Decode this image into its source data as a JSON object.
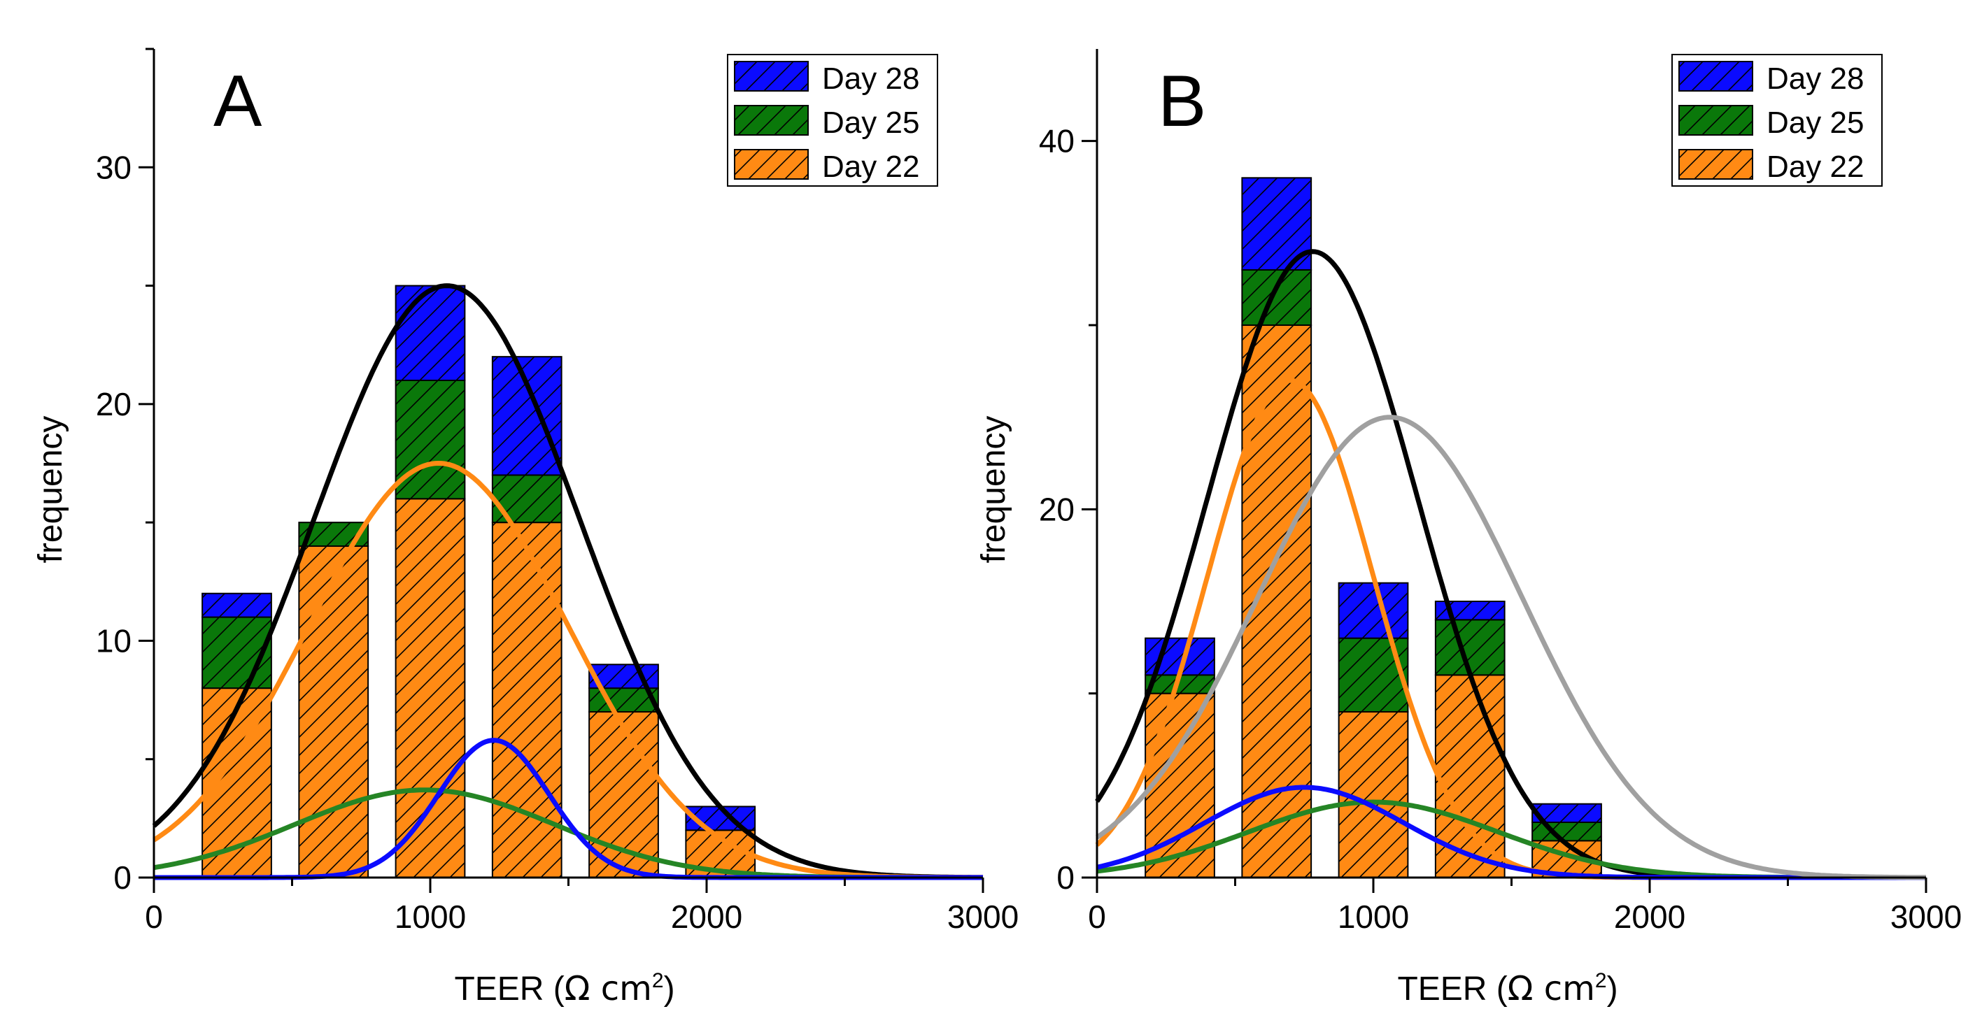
{
  "chart_data": [
    {
      "type": "bar",
      "panel_label": "A",
      "stacked": true,
      "bin_centers": [
        300,
        650,
        1000,
        1350,
        1700,
        2050
      ],
      "bin_width": 250,
      "series": [
        {
          "name": "Day 22",
          "color": "#ff8a14",
          "values": [
            8,
            14,
            16,
            15,
            7,
            2
          ]
        },
        {
          "name": "Day 25",
          "color": "#0a780a",
          "values": [
            3,
            1,
            5,
            2,
            1,
            0
          ]
        },
        {
          "name": "Day 28",
          "color": "#0b0bff",
          "values": [
            1,
            0,
            4,
            5,
            1,
            1
          ]
        }
      ],
      "fit_curves": [
        {
          "name": "total-fit",
          "color": "#000000",
          "mean": 1060,
          "sigma": 480,
          "amplitude": 25
        },
        {
          "name": "day22-fit",
          "color": "#ff8a14",
          "mean": 1030,
          "sigma": 470,
          "amplitude": 17.5
        },
        {
          "name": "day25-fit",
          "color": "#258525",
          "mean": 980,
          "sigma": 470,
          "amplitude": 3.7
        },
        {
          "name": "day28-fit",
          "color": "#0b0bff",
          "mean": 1230,
          "sigma": 200,
          "amplitude": 5.8
        }
      ],
      "xlabel": "TEER (Ω cm²)",
      "xlabel_main": "TEER (",
      "xlabel_unit": "Ω cm",
      "xlabel_sup": "2",
      "xlabel_close": ")",
      "ylabel": "frequency",
      "xlim": [
        0,
        3000
      ],
      "ylim": [
        0,
        35
      ],
      "xticks": [
        0,
        1000,
        2000,
        3000
      ],
      "yticks": [
        0,
        10,
        20,
        30
      ],
      "legend_position": "top-right"
    },
    {
      "type": "bar",
      "panel_label": "B",
      "stacked": true,
      "bin_centers": [
        300,
        650,
        1000,
        1350,
        1700
      ],
      "bin_width": 250,
      "series": [
        {
          "name": "Day 22",
          "color": "#ff8a14",
          "values": [
            10,
            30,
            9,
            11,
            2
          ]
        },
        {
          "name": "Day 25",
          "color": "#0a780a",
          "values": [
            1,
            3,
            4,
            3,
            1
          ]
        },
        {
          "name": "Day 28",
          "color": "#0b0bff",
          "values": [
            2,
            5,
            3,
            1,
            1
          ]
        }
      ],
      "fit_curves": [
        {
          "name": "total-fit",
          "color": "#000000",
          "mean": 780,
          "sigma": 380,
          "amplitude": 34
        },
        {
          "name": "day22-fit",
          "color": "#ff8a14",
          "mean": 700,
          "sigma": 300,
          "amplitude": 27
        },
        {
          "name": "day25-fit",
          "color": "#258525",
          "mean": 1000,
          "sigma": 450,
          "amplitude": 4.1
        },
        {
          "name": "day28-fit",
          "color": "#0b0bff",
          "mean": 750,
          "sigma": 360,
          "amplitude": 4.9
        },
        {
          "name": "reference-fit",
          "color": "#a0a0a0",
          "mean": 1060,
          "sigma": 480,
          "amplitude": 25
        }
      ],
      "xlabel": "TEER (Ω cm²)",
      "xlabel_main": "TEER (",
      "xlabel_unit": "Ω cm",
      "xlabel_sup": "2",
      "xlabel_close": ")",
      "ylabel": "frequency",
      "xlim": [
        0,
        3000
      ],
      "ylim": [
        0,
        45
      ],
      "xticks": [
        0,
        1000,
        2000,
        3000
      ],
      "yticks": [
        0,
        20,
        40
      ],
      "legend_position": "top-right"
    }
  ]
}
